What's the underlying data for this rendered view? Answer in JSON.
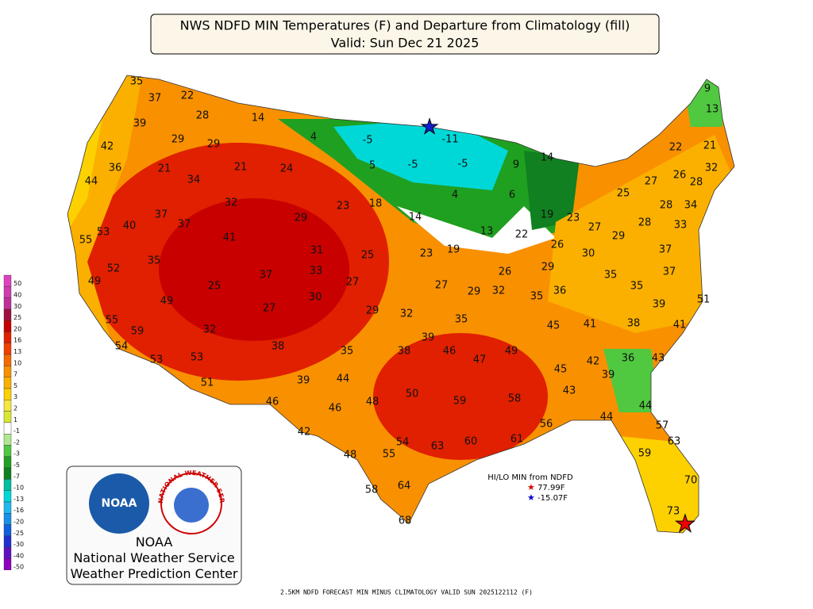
{
  "header": {
    "title": "NWS NDFD MIN Temperatures (F) and Departure from Climatology (fill)",
    "valid": "Valid: Sun Dec 21 2025"
  },
  "colorbar": {
    "ticks": [
      50,
      40,
      30,
      25,
      20,
      16,
      13,
      10,
      7,
      5,
      3,
      2,
      1,
      -1,
      -2,
      -3,
      -5,
      -7,
      -10,
      -13,
      -16,
      -20,
      -25,
      -30,
      -40,
      -50
    ],
    "colors": [
      "#e040c0",
      "#d03cb0",
      "#c0309a",
      "#a01040",
      "#c80000",
      "#e02000",
      "#f04000",
      "#f56a00",
      "#f99000",
      "#fbb000",
      "#fdd000",
      "#f5e640",
      "#d8e830",
      "#ffffff",
      "#b0e890",
      "#50c840",
      "#20a020",
      "#108020",
      "#00c0a0",
      "#00d8d8",
      "#20b8f0",
      "#1890e8",
      "#1060e0",
      "#2030d0",
      "#6010c0",
      "#9000c0"
    ]
  },
  "temperatures": [
    35,
    37,
    22,
    28,
    14,
    39,
    29,
    29,
    42,
    4,
    -5,
    -11,
    36,
    21,
    21,
    24,
    5,
    -5,
    -5,
    9,
    14,
    44,
    34,
    4,
    6,
    32,
    23,
    18,
    37,
    37,
    29,
    14,
    19,
    23,
    40,
    55,
    53,
    41,
    13,
    22,
    27,
    29,
    26,
    30,
    35,
    31,
    25,
    23,
    19,
    52,
    33,
    37,
    26,
    29,
    49,
    25,
    27,
    27,
    29,
    32,
    35,
    36,
    35,
    35,
    30,
    49,
    27,
    29,
    32,
    35,
    39,
    55,
    59,
    32,
    45,
    41,
    38,
    41,
    54,
    38,
    35,
    38,
    39,
    46,
    47,
    49,
    53,
    53,
    36,
    43,
    45,
    42,
    39,
    51,
    39,
    44,
    48,
    50,
    59,
    58,
    43,
    46,
    46,
    44,
    44,
    56,
    57,
    42,
    54,
    63,
    60,
    61,
    63,
    48,
    55,
    59,
    64,
    58,
    70,
    73,
    68,
    9,
    13,
    22,
    21,
    26,
    32,
    28,
    27,
    25,
    28,
    34,
    28,
    33,
    37,
    37,
    51
  ],
  "hilo": {
    "title": "HI/LO MIN from NDFD",
    "hi": "77.99F",
    "lo": "-15.07F"
  },
  "logo": {
    "noaa": "NOAA",
    "nws_ring": "NATIONAL WEATHER SERVICE",
    "line1": "NOAA",
    "line2": "National Weather Service",
    "line3": "Weather Prediction Center"
  },
  "footer": "2.5KM NDFD FORECAST MIN MINUS CLIMATOLOGY VALID SUN 2025122112 (F)"
}
